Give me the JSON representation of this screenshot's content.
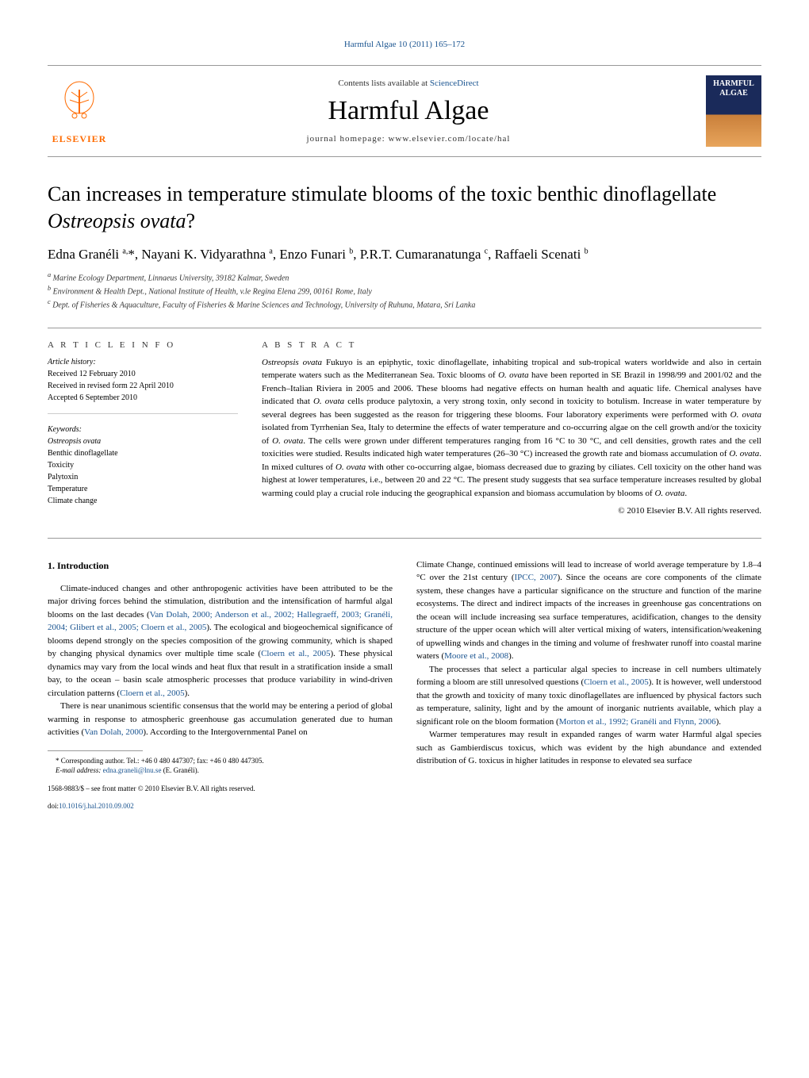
{
  "header_link": "Harmful Algae 10 (2011) 165–172",
  "masthead": {
    "contents_prefix": "Contents lists available at ",
    "contents_link": "ScienceDirect",
    "journal_title": "Harmful Algae",
    "homepage": "journal homepage: www.elsevier.com/locate/hal",
    "publisher": "ELSEVIER",
    "cover_text": "HARMFUL ALGAE"
  },
  "article": {
    "title_pre": "Can increases in temperature stimulate blooms of the toxic benthic dinoflagellate ",
    "title_italic": "Ostreopsis ovata",
    "title_post": "?",
    "authors_html": "Edna Granéli <sup>a,</sup>*, Nayani K. Vidyarathna <sup>a</sup>, Enzo Funari <sup>b</sup>, P.R.T. Cumaranatunga <sup>c</sup>, Raffaeli Scenati <sup>b</sup>",
    "affiliations": {
      "a": "Marine Ecology Department, Linnaeus University, 39182 Kalmar, Sweden",
      "b": "Environment & Health Dept., National Institute of Health, v.le Regina Elena 299, 00161 Rome, Italy",
      "c": "Dept. of Fisheries & Aquaculture, Faculty of Fisheries & Marine Sciences and Technology, University of Ruhuna, Matara, Sri Lanka"
    }
  },
  "info": {
    "heading": "A R T I C L E   I N F O",
    "history_label": "Article history:",
    "received": "Received 12 February 2010",
    "revised": "Received in revised form 22 April 2010",
    "accepted": "Accepted 6 September 2010",
    "keywords_label": "Keywords:",
    "keywords": [
      "Ostreopsis ovata",
      "Benthic dinoflagellate",
      "Toxicity",
      "Palytoxin",
      "Temperature",
      "Climate change"
    ]
  },
  "abstract": {
    "heading": "A B S T R A C T",
    "text": "Ostreopsis ovata Fukuyo is an epiphytic, toxic dinoflagellate, inhabiting tropical and sub-tropical waters worldwide and also in certain temperate waters such as the Mediterranean Sea. Toxic blooms of O. ovata have been reported in SE Brazil in 1998/99 and 2001/02 and the French–Italian Riviera in 2005 and 2006. These blooms had negative effects on human health and aquatic life. Chemical analyses have indicated that O. ovata cells produce palytoxin, a very strong toxin, only second in toxicity to botulism. Increase in water temperature by several degrees has been suggested as the reason for triggering these blooms. Four laboratory experiments were performed with O. ovata isolated from Tyrrhenian Sea, Italy to determine the effects of water temperature and co-occurring algae on the cell growth and/or the toxicity of O. ovata. The cells were grown under different temperatures ranging from 16 °C to 30 °C, and cell densities, growth rates and the cell toxicities were studied. Results indicated high water temperatures (26–30 °C) increased the growth rate and biomass accumulation of O. ovata. In mixed cultures of O. ovata with other co-occurring algae, biomass decreased due to grazing by ciliates. Cell toxicity on the other hand was highest at lower temperatures, i.e., between 20 and 22 °C. The present study suggests that sea surface temperature increases resulted by global warming could play a crucial role inducing the geographical expansion and biomass accumulation by blooms of O. ovata.",
    "copyright": "© 2010 Elsevier B.V. All rights reserved."
  },
  "body": {
    "intro_heading": "1. Introduction",
    "p1": "Climate-induced changes and other anthropogenic activities have been attributed to be the major driving forces behind the stimulation, distribution and the intensification of harmful algal blooms on the last decades (Van Dolah, 2000; Anderson et al., 2002; Hallegraeff, 2003; Granéli, 2004; Glibert et al., 2005; Cloern et al., 2005). The ecological and biogeochemical significance of blooms depend strongly on the species composition of the growing community, which is shaped by changing physical dynamics over multiple time scale (Cloern et al., 2005). These physical dynamics may vary from the local winds and heat flux that result in a stratification inside a small bay, to the ocean – basin scale atmospheric processes that produce variability in wind-driven circulation patterns (Cloern et al., 2005).",
    "p2": "There is near unanimous scientific consensus that the world may be entering a period of global warming in response to atmospheric greenhouse gas accumulation generated due to human activities (Van Dolah, 2000). According to the Intergovernmental Panel on",
    "p3": "Climate Change, continued emissions will lead to increase of world average temperature by 1.8–4 °C over the 21st century (IPCC, 2007). Since the oceans are core components of the climate system, these changes have a particular significance on the structure and function of the marine ecosystems. The direct and indirect impacts of the increases in greenhouse gas concentrations on the ocean will include increasing sea surface temperatures, acidification, changes to the density structure of the upper ocean which will alter vertical mixing of waters, intensification/weakening of upwelling winds and changes in the timing and volume of freshwater runoff into coastal marine waters (Moore et al., 2008).",
    "p4": "The processes that select a particular algal species to increase in cell numbers ultimately forming a bloom are still unresolved questions (Cloern et al., 2005). It is however, well understood that the growth and toxicity of many toxic dinoflagellates are influenced by physical factors such as temperature, salinity, light and by the amount of inorganic nutrients available, which play a significant role on the bloom formation (Morton et al., 1992; Granéli and Flynn, 2006).",
    "p5": "Warmer temperatures may result in expanded ranges of warm water Harmful algal species such as Gambierdiscus toxicus, which was evident by the high abundance and extended distribution of G. toxicus in higher latitudes in response to elevated sea surface"
  },
  "footnote": {
    "corresponding": "* Corresponding author. Tel.: +46 0 480 447307; fax: +46 0 480 447305.",
    "email_label": "E-mail address: ",
    "email": "edna.graneli@lnu.se",
    "email_suffix": " (E. Granéli).",
    "front_matter": "1568-9883/$ – see front matter © 2010 Elsevier B.V. All rights reserved.",
    "doi_prefix": "doi:",
    "doi": "10.1016/j.hal.2010.09.002"
  },
  "colors": {
    "link": "#1a5490",
    "elsevier": "#ff6b00",
    "text": "#000000",
    "border": "#999999"
  }
}
